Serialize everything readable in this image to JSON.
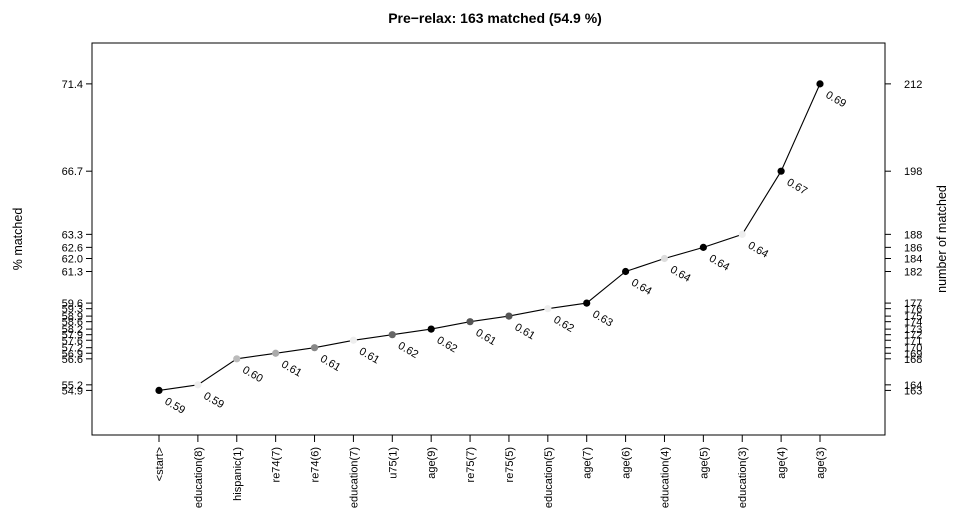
{
  "chart_data": {
    "type": "line",
    "title": "Pre−relax: 163 matched (54.9 %)",
    "ylabel_left": "% matched",
    "ylabel_right": "number of matched",
    "categories": [
      "<start>",
      "education(8)",
      "hispanic(1)",
      "re74(7)",
      "re74(6)",
      "education(7)",
      "u75(1)",
      "age(9)",
      "re75(7)",
      "re75(5)",
      "education(5)",
      "age(7)",
      "age(6)",
      "education(4)",
      "age(5)",
      "education(3)",
      "age(4)",
      "age(3)"
    ],
    "values": [
      54.9,
      55.2,
      56.6,
      56.9,
      57.2,
      57.6,
      57.9,
      58.2,
      58.6,
      58.9,
      59.3,
      59.6,
      61.3,
      62.0,
      62.6,
      63.3,
      66.7,
      71.4
    ],
    "point_labels": [
      "0.59",
      "0.59",
      "0.60",
      "0.61",
      "0.61",
      "0.61",
      "0.62",
      "0.62",
      "0.61",
      "0.61",
      "0.62",
      "0.63",
      "0.64",
      "0.64",
      "0.64",
      "0.64",
      "0.67",
      "0.69"
    ],
    "point_colors": [
      "#000000",
      "#eeeeee",
      "#bbbbbb",
      "#aaaaaa",
      "#888888",
      "#eeeeee",
      "#666666",
      "#000000",
      "#555555",
      "#555555",
      "#eeeeee",
      "#000000",
      "#000000",
      "#dddddd",
      "#000000",
      "#eeeeee",
      "#000000",
      "#000000"
    ],
    "left_ticks": [
      "54.9",
      "55.2",
      "56.6",
      "56.9",
      "57.2",
      "57.6",
      "57.9",
      "58.2",
      "58.6",
      "58.9",
      "59.3",
      "59.6",
      "61.3",
      "62.0",
      "62.6",
      "63.3",
      "66.7",
      "71.4"
    ],
    "right_ticks": [
      "163",
      "164",
      "168",
      "169",
      "170",
      "171",
      "172",
      "173",
      "174",
      "175",
      "176",
      "177",
      "182",
      "184",
      "186",
      "188",
      "198",
      "212"
    ],
    "ylim": [
      52.5,
      73.6
    ],
    "grid": false,
    "legend": "none"
  }
}
